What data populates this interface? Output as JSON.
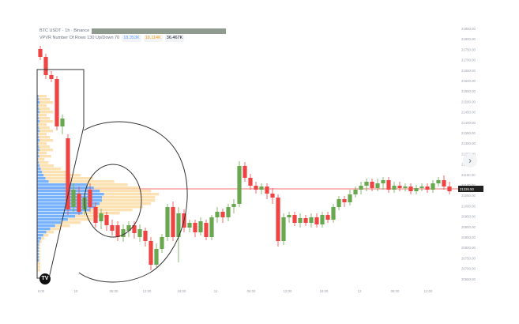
{
  "header": {
    "symbol_line": "BTC USDT · 1h · Binance",
    "indicator_name": "VPVR Number Of Rows 130 Up/Down 70",
    "indicator_values": [
      "18.353K",
      "18.114K",
      "36.467K"
    ]
  },
  "price_axis": {
    "labels": [
      "21850.00",
      "21800.00",
      "21750.00",
      "21700.00",
      "21650.00",
      "21600.00",
      "21550.00",
      "21500.00",
      "21450.00",
      "21400.00",
      "21350.00",
      "21300.00",
      "21250.00",
      "21200.00",
      "21150.00",
      "21100.00",
      "21050.00",
      "21000.00",
      "20950.00",
      "20900.00",
      "20850.00",
      "20800.00",
      "20750.00",
      "20700.00",
      "20650.00"
    ],
    "last_price": "21226.50"
  },
  "time_axis": {
    "labels": [
      "6:00",
      "10",
      "06:00",
      "12:00",
      "18:00",
      "11",
      "06:00",
      "12:00",
      "18:00",
      "12",
      "06:00",
      "12:00"
    ]
  },
  "colors": {
    "up": "#6aa84f",
    "down": "#ef4444",
    "vp_up": "#60a5fa",
    "vp_down": "#fcd9a0",
    "price_line": "#ef4444",
    "annotation": "#333333"
  },
  "toolbar": {
    "nav_icon": "chevron-right-icon"
  },
  "branding": {
    "logo_icon": "tradingview-logo-icon",
    "logo_text": "TV"
  }
}
